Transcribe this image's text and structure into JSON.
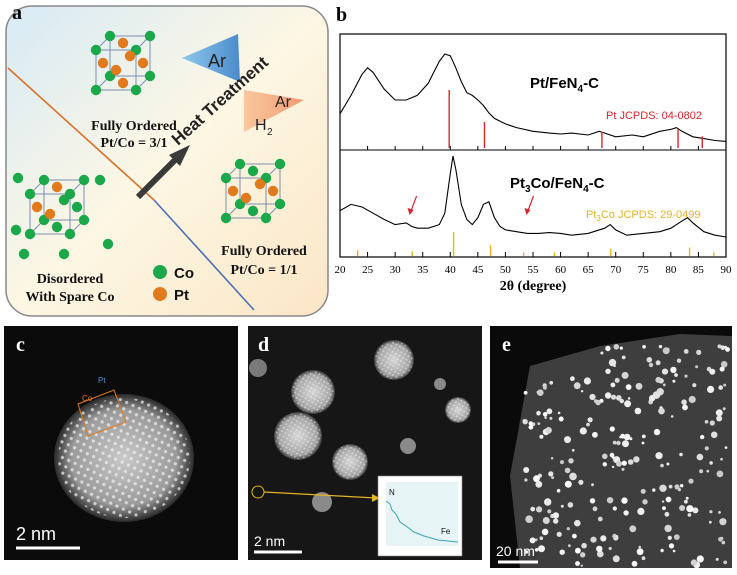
{
  "panels": {
    "a": {
      "letter": "a",
      "top_label": "Fully Ordered",
      "top_ratio": "Pt/Co = 3/1",
      "left_label_1": "Disordered",
      "left_label_2": "With Spare Co",
      "right_label": "Fully Ordered",
      "right_ratio": "Pt/Co = 1/1",
      "heat_treatment": "Heat Treatment",
      "gas_1": "Ar",
      "gas_2_ar": "Ar",
      "gas_2_h": "H",
      "gas_2_sub": "2",
      "legend": [
        {
          "label": "Co",
          "color": "#1aa84a"
        },
        {
          "label": "Pt",
          "color": "#e07a1c"
        }
      ]
    },
    "b": {
      "letter": "b",
      "upper_label": "Pt/FeN",
      "upper_label_sub": "4",
      "upper_label_tail": "-C",
      "upper_ref": "Pt JCPDS: 04-0802",
      "lower_label_pre": "Pt",
      "lower_label_sub": "3",
      "lower_label_post": "Co/FeN",
      "lower_label_sub2": "4",
      "lower_label_tail": "-C",
      "lower_ref_pre": "Pt",
      "lower_ref_sub": "3",
      "lower_ref_post": "Co JCPDS: 29-0499",
      "xlabel": "2θ (degree)"
    },
    "c": {
      "letter": "c",
      "scale": "2 nm",
      "co": "Co",
      "pt": "Pt"
    },
    "d": {
      "letter": "d",
      "scale": "2 nm",
      "n": "N",
      "fe": "Fe"
    },
    "e": {
      "letter": "e",
      "scale": "20 nm"
    }
  },
  "chart_data": {
    "type": "line",
    "xlabel": "2θ (degree)",
    "ylabel": "",
    "xlim": [
      20,
      90
    ],
    "x_ticks": [
      20,
      25,
      30,
      35,
      40,
      45,
      50,
      55,
      60,
      65,
      70,
      75,
      80,
      85,
      90
    ],
    "series": [
      {
        "name": "Pt/FeN4-C",
        "x": [
          20,
          22,
          24,
          25,
          26,
          28,
          30,
          32,
          34,
          36,
          37,
          38,
          39,
          40,
          41,
          42,
          43,
          44,
          45,
          46,
          47,
          48,
          50,
          52,
          55,
          58,
          60,
          62,
          65,
          67,
          68,
          70,
          73,
          75,
          78,
          80,
          81,
          82,
          84,
          86,
          88,
          90
        ],
        "y": [
          0.35,
          0.55,
          0.78,
          0.85,
          0.8,
          0.62,
          0.5,
          0.5,
          0.55,
          0.68,
          0.8,
          0.92,
          1.0,
          0.98,
          0.85,
          0.7,
          0.58,
          0.55,
          0.5,
          0.44,
          0.36,
          0.3,
          0.24,
          0.2,
          0.16,
          0.14,
          0.13,
          0.14,
          0.12,
          0.16,
          0.14,
          0.1,
          0.12,
          0.1,
          0.16,
          0.18,
          0.2,
          0.16,
          0.1,
          0.08,
          0.06,
          0.05
        ]
      },
      {
        "name": "Pt3Co/FeN4-C",
        "x": [
          20,
          22,
          24,
          26,
          28,
          30,
          32,
          33,
          34,
          36,
          38,
          39,
          40,
          40.5,
          41,
          42,
          43,
          44,
          45,
          46,
          47,
          48,
          49,
          50,
          52,
          54,
          56,
          58,
          60,
          62,
          65,
          68,
          69,
          70,
          72,
          75,
          78,
          80,
          82,
          83,
          84,
          86,
          88,
          90
        ],
        "y": [
          0.38,
          0.45,
          0.42,
          0.35,
          0.28,
          0.22,
          0.24,
          0.2,
          0.18,
          0.18,
          0.22,
          0.35,
          0.8,
          1.0,
          0.85,
          0.45,
          0.28,
          0.22,
          0.3,
          0.45,
          0.48,
          0.3,
          0.2,
          0.16,
          0.14,
          0.12,
          0.12,
          0.13,
          0.12,
          0.1,
          0.12,
          0.18,
          0.22,
          0.16,
          0.1,
          0.12,
          0.14,
          0.18,
          0.26,
          0.3,
          0.24,
          0.14,
          0.1,
          0.08
        ]
      }
    ],
    "reference_lines": [
      {
        "name": "Pt JCPDS: 04-0802",
        "color": "#d9262c",
        "x": [
          39.8,
          46.2,
          67.5,
          81.3,
          85.7
        ],
        "h": [
          1.0,
          0.45,
          0.28,
          0.32,
          0.2
        ]
      },
      {
        "name": "Pt3Co JCPDS: 29-0499",
        "color": "#e6b325",
        "x": [
          23.2,
          33.1,
          40.6,
          47.3,
          53.3,
          58.9,
          69.1,
          83.4,
          87.8
        ],
        "h": [
          0.25,
          0.2,
          1.0,
          0.45,
          0.15,
          0.15,
          0.3,
          0.35,
          0.15
        ]
      }
    ],
    "annotations": [
      {
        "type": "arrow",
        "x": 32.8,
        "series": "Pt3Co/FeN4-C"
      },
      {
        "type": "arrow",
        "x": 54.0,
        "series": "Pt3Co/FeN4-C"
      }
    ]
  }
}
